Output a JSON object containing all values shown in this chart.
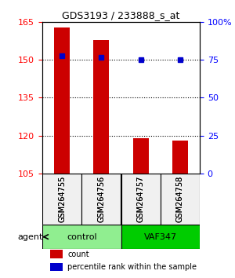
{
  "title": "GDS3193 / 233888_s_at",
  "samples": [
    "GSM264755",
    "GSM264756",
    "GSM264757",
    "GSM264758"
  ],
  "counts": [
    163,
    158,
    119,
    118
  ],
  "percentile_ranks": [
    78,
    77,
    75,
    75
  ],
  "ylim_left": [
    105,
    165
  ],
  "ylim_right": [
    0,
    100
  ],
  "yticks_left": [
    105,
    120,
    135,
    150,
    165
  ],
  "yticks_right": [
    0,
    25,
    50,
    75,
    100
  ],
  "ytick_labels_right": [
    "0",
    "25",
    "50",
    "75",
    "100%"
  ],
  "groups": [
    {
      "label": "control",
      "color": "#90EE90",
      "indices": [
        0,
        1
      ]
    },
    {
      "label": "VAF347",
      "color": "#00CC00",
      "indices": [
        2,
        3
      ]
    }
  ],
  "bar_color": "#CC0000",
  "dot_color": "#0000CC",
  "bar_width": 0.4,
  "grid_color": "black",
  "agent_label": "agent",
  "legend_count_label": "count",
  "legend_pct_label": "percentile rank within the sample",
  "bg_color": "#F0F0F0"
}
